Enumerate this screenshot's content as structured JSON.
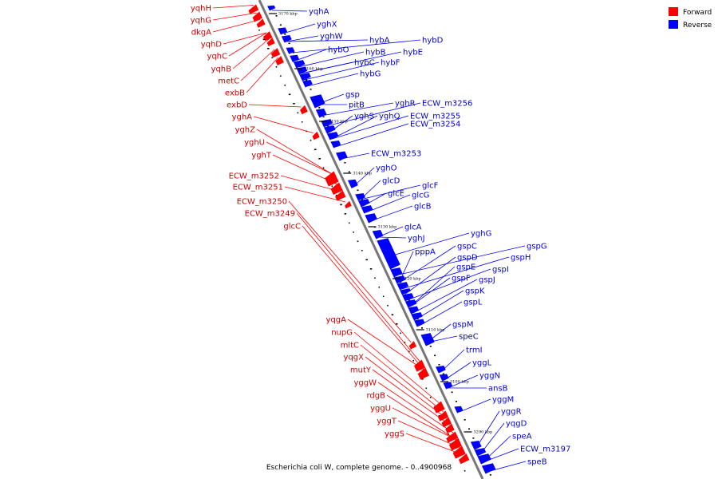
{
  "title": "Escherichia coli W, complete genome. - 0..4900968",
  "colors": {
    "forward": "#ff0000",
    "reverse": "#0000ff",
    "axis": "#888888",
    "forward_text": "#cc0000",
    "reverse_text": "#0000cc"
  },
  "legend": [
    {
      "label": "Forward",
      "color": "#ff0000"
    },
    {
      "label": "Reverse",
      "color": "#0000ff"
    }
  ],
  "ticks": [
    "3170 kbp",
    "3160 kbp",
    "3150 kbp",
    "3140 kbp",
    "3130 kbp",
    "3120 kbp",
    "3110 kbp",
    "3100 kbp",
    "3290 kbp"
  ],
  "forward_genes": [
    "yqhH",
    "yqhG",
    "dkgA",
    "yqhD",
    "yqhC",
    "yqhB",
    "metC",
    "exbB",
    "exbD",
    "yghA",
    "yghZ",
    "yghU",
    "yghT",
    "ECW_m3252",
    "ECW_m3251",
    "ECW_m3250",
    "ECW_m3249",
    "glcC",
    "yqgA",
    "nupG",
    "mltC",
    "yqgX",
    "mutY",
    "yggW",
    "rdgB",
    "yggU",
    "yggT",
    "yggS"
  ],
  "reverse_genes": [
    "yqhA",
    "yghX",
    "yghW",
    "hybA",
    "hybD",
    "hybO",
    "hybB",
    "hybE",
    "hybC",
    "hybF",
    "hybG",
    "gsp",
    "pitB",
    "yghR",
    "ECW_m3256",
    "yghS",
    "yghQ",
    "ECW_m3255",
    "ECW_m3254",
    "ECW_m3253",
    "yghO",
    "glcD",
    "glcF",
    "glcE",
    "glcG",
    "glcB",
    "glcA",
    "yghJ",
    "yghG",
    "gspG",
    "pppA",
    "gspC",
    "gspH",
    "gspD",
    "gspI",
    "gspE",
    "gspF",
    "gspJ",
    "gspK",
    "gspL",
    "gspM",
    "speC",
    "trmI",
    "yggL",
    "yggN",
    "ansB",
    "yggM",
    "yggR",
    "yqgD",
    "speA",
    "ECW_m3197",
    "speB"
  ]
}
